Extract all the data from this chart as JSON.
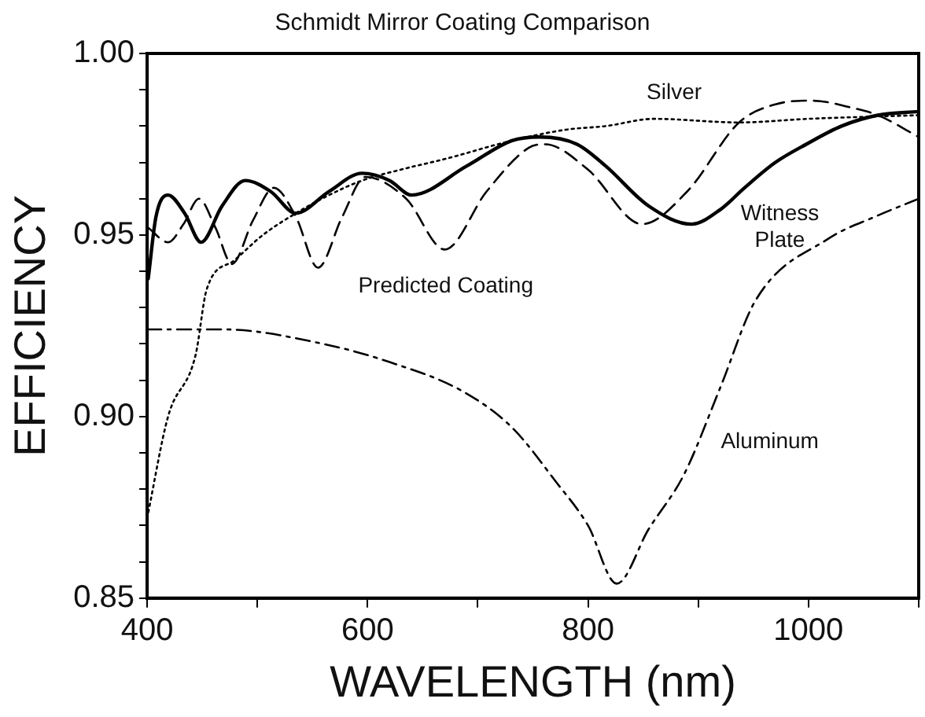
{
  "chart_data": {
    "type": "line",
    "title": "Schmidt Mirror Coating Comparison",
    "xlabel": "WAVELENGTH (nm)",
    "ylabel": "EFFICIENCY",
    "xlim": [
      400,
      1100
    ],
    "ylim": [
      0.85,
      1.0
    ],
    "xticks": [
      400,
      {
        "value": 500,
        "label": null
      },
      600,
      {
        "value": 700,
        "label": null
      },
      800,
      {
        "value": 900,
        "label": null
      },
      1000,
      {
        "value": 1100,
        "label": null
      }
    ],
    "yticks": [
      {
        "value": 0.85,
        "label": "0.85"
      },
      {
        "value": 0.86,
        "label": null
      },
      {
        "value": 0.87,
        "label": null
      },
      {
        "value": 0.88,
        "label": null
      },
      {
        "value": 0.89,
        "label": null
      },
      {
        "value": 0.9,
        "label": "0.90"
      },
      {
        "value": 0.91,
        "label": null
      },
      {
        "value": 0.92,
        "label": null
      },
      {
        "value": 0.93,
        "label": null
      },
      {
        "value": 0.94,
        "label": null
      },
      {
        "value": 0.95,
        "label": "0.95"
      },
      {
        "value": 0.96,
        "label": null
      },
      {
        "value": 0.97,
        "label": null
      },
      {
        "value": 0.98,
        "label": null
      },
      {
        "value": 0.99,
        "label": null
      },
      {
        "value": 1.0,
        "label": "1.00"
      }
    ],
    "grid": false,
    "legend": false,
    "marker": "none",
    "series": [
      {
        "name": "Witness Plate",
        "color": "#000000",
        "line_style": "solid",
        "x": [
          401,
          408,
          419,
          434,
          449,
          468,
          489,
          512,
          535,
          565,
          595,
          620,
          640,
          690,
          731,
          756,
          790,
          816,
          855,
          894,
          920,
          942,
          970,
          998,
          1030,
          1063,
          1100
        ],
        "values": [
          0.938,
          0.955,
          0.961,
          0.956,
          0.948,
          0.958,
          0.965,
          0.962,
          0.956,
          0.962,
          0.967,
          0.965,
          0.961,
          0.969,
          0.976,
          0.977,
          0.975,
          0.969,
          0.958,
          0.953,
          0.957,
          0.963,
          0.97,
          0.975,
          0.98,
          0.983,
          0.984
        ]
      },
      {
        "name": "Predicted Coating",
        "color": "#000000",
        "line_style": "dashed",
        "x": [
          401,
          419,
          433,
          447,
          462,
          477,
          496,
          515,
          535,
          555,
          577,
          598,
          635,
          670,
          708,
          746,
          761,
          800,
          849,
          890,
          937,
          970,
          1003,
          1040,
          1063,
          1100
        ],
        "values": [
          0.952,
          0.948,
          0.953,
          0.96,
          0.952,
          0.942,
          0.954,
          0.963,
          0.955,
          0.941,
          0.955,
          0.966,
          0.96,
          0.946,
          0.962,
          0.974,
          0.975,
          0.968,
          0.953,
          0.962,
          0.981,
          0.986,
          0.987,
          0.985,
          0.983,
          0.977
        ]
      },
      {
        "name": "Silver",
        "color": "#000000",
        "line_style": "dotted",
        "x": [
          400,
          419,
          444,
          454,
          479,
          505,
          535,
          565,
          595,
          630,
          671,
          731,
          780,
          816,
          860,
          937,
          1000,
          1100
        ],
        "values": [
          0.872,
          0.9,
          0.917,
          0.935,
          0.943,
          0.95,
          0.956,
          0.961,
          0.965,
          0.968,
          0.971,
          0.976,
          0.979,
          0.98,
          0.982,
          0.981,
          0.982,
          0.983
        ]
      },
      {
        "name": "Aluminum",
        "color": "#000000",
        "line_style": "dashdot",
        "x": [
          400,
          469,
          560,
          620,
          686,
          731,
          771,
          800,
          826,
          855,
          887,
          920,
          952,
          1018,
          1060,
          1100
        ],
        "values": [
          0.924,
          0.924,
          0.92,
          0.915,
          0.907,
          0.897,
          0.882,
          0.87,
          0.854,
          0.869,
          0.884,
          0.908,
          0.932,
          0.949,
          0.955,
          0.96
        ]
      }
    ]
  }
}
